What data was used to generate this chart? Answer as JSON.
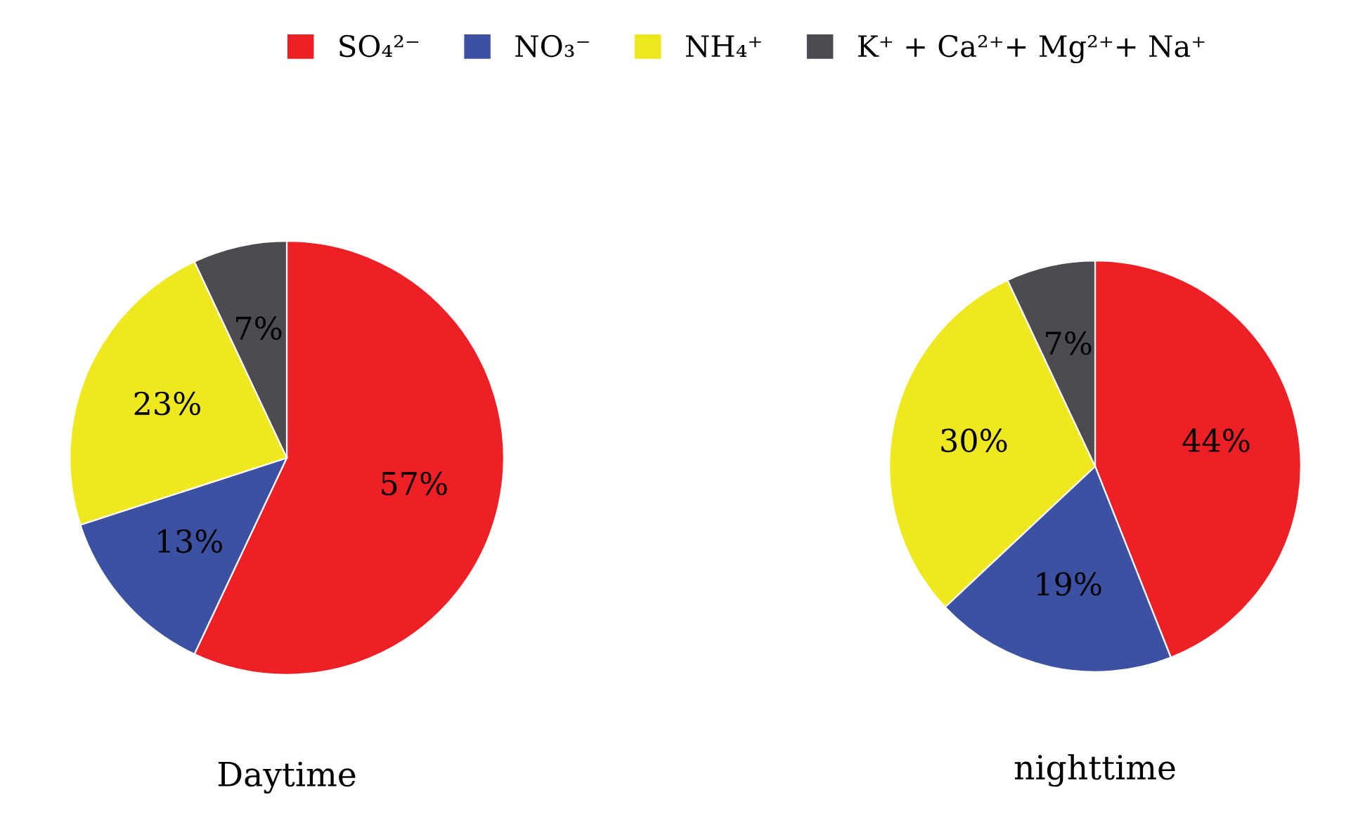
{
  "chart_data": [
    {
      "type": "pie",
      "title": "Daytime",
      "categories": [
        "SO₄²⁻",
        "NO₃⁻",
        "NH₄⁺",
        "K⁺ + Ca²⁺+ Mg²⁺+ Na⁺"
      ],
      "values": [
        57,
        13,
        23,
        7
      ],
      "colors": [
        "#ee1f25",
        "#3d51a3",
        "#f0e81e",
        "#4d4a52"
      ],
      "value_labels": [
        "57%",
        "13%",
        "23%",
        "7%"
      ],
      "legend": "top"
    },
    {
      "type": "pie",
      "title": "nighttime",
      "values": [
        44,
        19,
        30,
        7
      ],
      "colors": [
        "#ee1f25",
        "#3d51a3",
        "#f0e81e",
        "#4d4a52"
      ],
      "value_labels": [
        "44%",
        "19%",
        "30%",
        "7%"
      ]
    }
  ]
}
